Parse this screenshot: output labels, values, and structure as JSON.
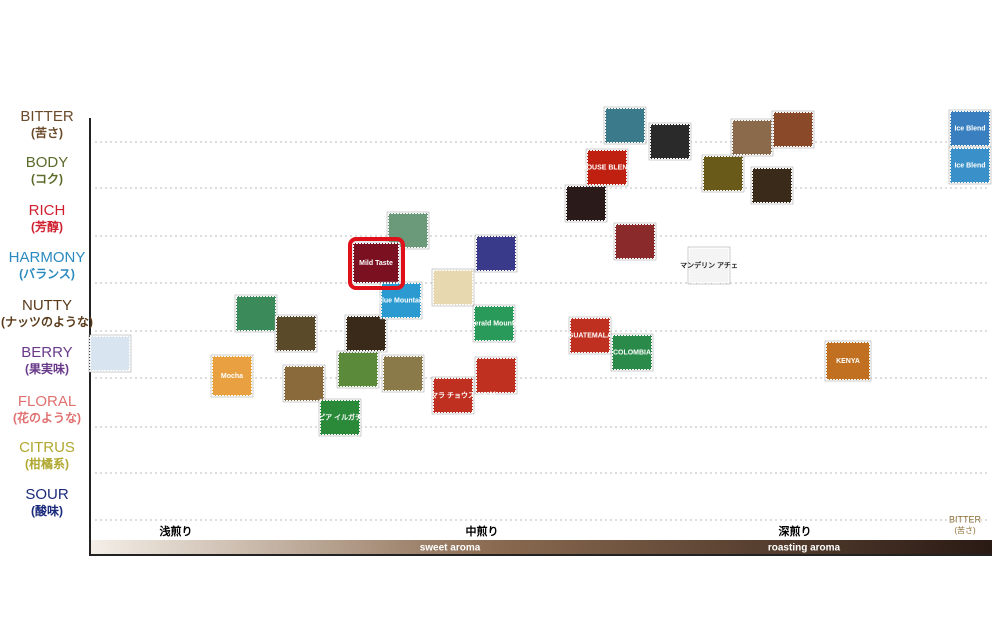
{
  "y_axis": {
    "levels": [
      {
        "label": "BITTER",
        "sub": "(苦さ)"
      },
      {
        "label": "BODY",
        "sub": "(コク)"
      },
      {
        "label": "RICH",
        "sub": "(芳醇)"
      },
      {
        "label": "HARMONY",
        "sub": "(バランス)"
      },
      {
        "label": "NUTTY",
        "sub": "(ナッツのような)"
      },
      {
        "label": "BERRY",
        "sub": "(果実味)"
      },
      {
        "label": "FLORAL",
        "sub": "(花のような)"
      },
      {
        "label": "CITRUS",
        "sub": "(柑橘系)"
      },
      {
        "label": "SOUR",
        "sub": "(酸味)"
      }
    ]
  },
  "x_axis": {
    "roasts": [
      "浅煎り",
      "中煎り",
      "深煎り"
    ],
    "end_label": "BITTER",
    "end_sub": "(苦さ)",
    "aromas": [
      "sweet aroma",
      "roasting aroma"
    ]
  },
  "stamps": [
    "Mild Taste",
    "Mocha",
    "HOUSE BLEND",
    "Ice Blend",
    "Ice Blend",
    "Blue Mountain",
    "Emerald Mountain",
    "GUATEMALA",
    "COLOMBIA",
    "KENYA",
    "マンデリン アチェ",
    "エチオピア イルガチェフェ",
    "グァテマラ チョウスニル村"
  ]
}
